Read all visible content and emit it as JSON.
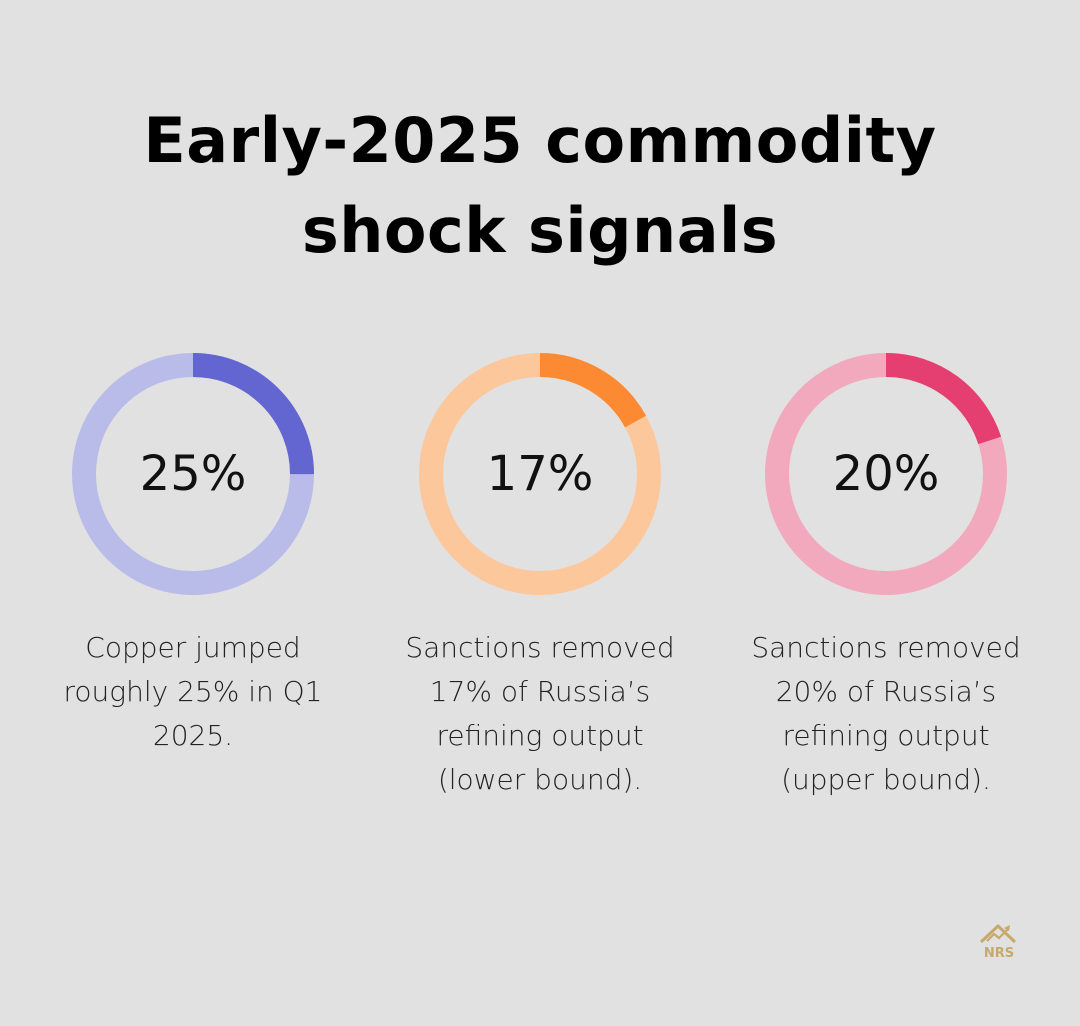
{
  "title": {
    "line1": "Early-2025 commodity",
    "line2": "shock signals"
  },
  "chart_data": {
    "type": "pie",
    "style": "donut",
    "items": [
      {
        "label": "25%",
        "value": 25,
        "caption": "Copper jumped roughly 25% in Q1 2025.",
        "color_fill": "#6366d1",
        "color_track": "#b9bce9"
      },
      {
        "label": "17%",
        "value": 17,
        "caption": "Sanctions removed 17% of Russia’s refining output (lower bound).",
        "color_fill": "#fb8a33",
        "color_track": "#fdc79c"
      },
      {
        "label": "20%",
        "value": 20,
        "caption": "Sanctions removed 20% of Russia’s refining output (upper bound).",
        "color_fill": "#e53f71",
        "color_track": "#f2a9be"
      }
    ]
  },
  "logo": {
    "text": "NRS",
    "icon": "house-chart-icon",
    "color": "#c8a86b"
  }
}
